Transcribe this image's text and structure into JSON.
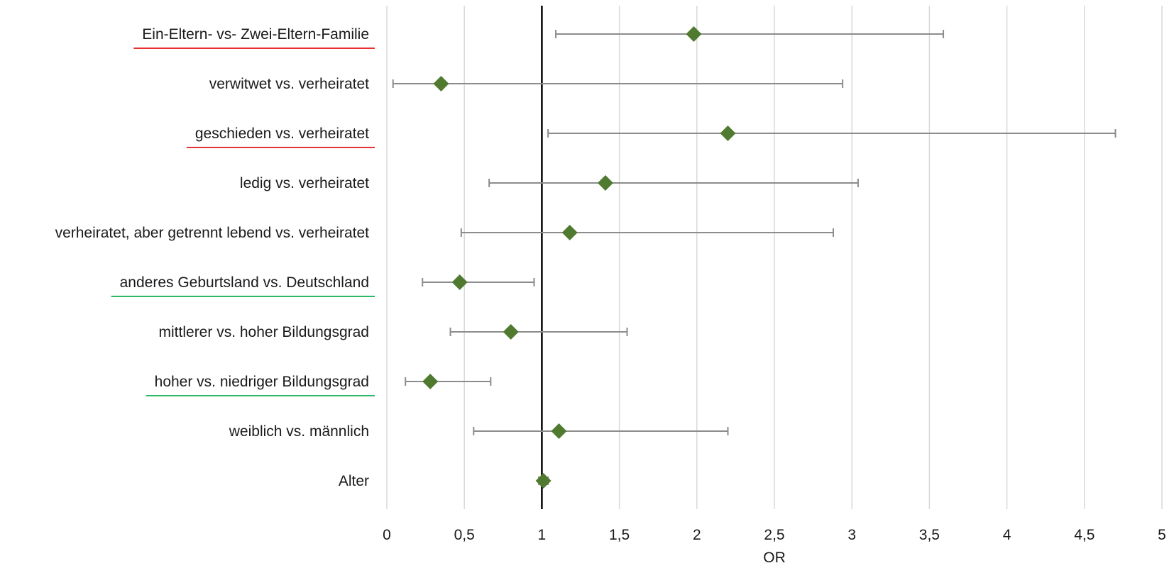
{
  "chart_data": {
    "type": "scatter",
    "subtype": "forest-plot",
    "orientation": "horizontal",
    "title": "",
    "xlabel": "OR",
    "ylabel": "",
    "xlim": [
      0,
      5
    ],
    "xticks": [
      0,
      0.5,
      1,
      1.5,
      2,
      2.5,
      3,
      3.5,
      4,
      4.5,
      5
    ],
    "xtick_labels": [
      "0",
      "0,5",
      "1",
      "1,5",
      "2",
      "2,5",
      "3",
      "3,5",
      "4",
      "4,5",
      "5"
    ],
    "reference_line": 1,
    "grid": "vertical",
    "marker": "diamond",
    "colors": {
      "marker": "#4f7a2f",
      "error_bar": "#8c8c8c",
      "grid": "#d9d9d9",
      "reference_line": "#000000",
      "underline_significant_risk": "#e63232",
      "underline_significant_protective": "#2db866"
    },
    "rows": [
      {
        "label": "Ein-Eltern- vs- Zwei-Eltern-Familie",
        "or": 1.98,
        "ci_low": 1.09,
        "ci_high": 3.59,
        "underline": "red"
      },
      {
        "label": "verwitwet vs. verheiratet",
        "or": 0.35,
        "ci_low": 0.04,
        "ci_high": 2.94,
        "underline": "none"
      },
      {
        "label": "geschieden vs. verheiratet",
        "or": 2.2,
        "ci_low": 1.04,
        "ci_high": 4.7,
        "underline": "red"
      },
      {
        "label": "ledig vs. verheiratet",
        "or": 1.41,
        "ci_low": 0.66,
        "ci_high": 3.04,
        "underline": "none"
      },
      {
        "label": "verheiratet, aber getrennt lebend vs. verheiratet",
        "or": 1.18,
        "ci_low": 0.48,
        "ci_high": 2.88,
        "underline": "none"
      },
      {
        "label": "anderes Geburtsland vs. Deutschland",
        "or": 0.47,
        "ci_low": 0.23,
        "ci_high": 0.95,
        "underline": "green"
      },
      {
        "label": "mittlerer vs. hoher Bildungsgrad",
        "or": 0.8,
        "ci_low": 0.41,
        "ci_high": 1.55,
        "underline": "none"
      },
      {
        "label": "hoher vs. niedriger Bildungsgrad",
        "or": 0.28,
        "ci_low": 0.12,
        "ci_high": 0.67,
        "underline": "green"
      },
      {
        "label": "weiblich vs. männlich",
        "or": 1.11,
        "ci_low": 0.56,
        "ci_high": 2.2,
        "underline": "none"
      },
      {
        "label": "Alter",
        "or": 1.01,
        "ci_low": 0.98,
        "ci_high": 1.04,
        "underline": "none"
      }
    ]
  }
}
